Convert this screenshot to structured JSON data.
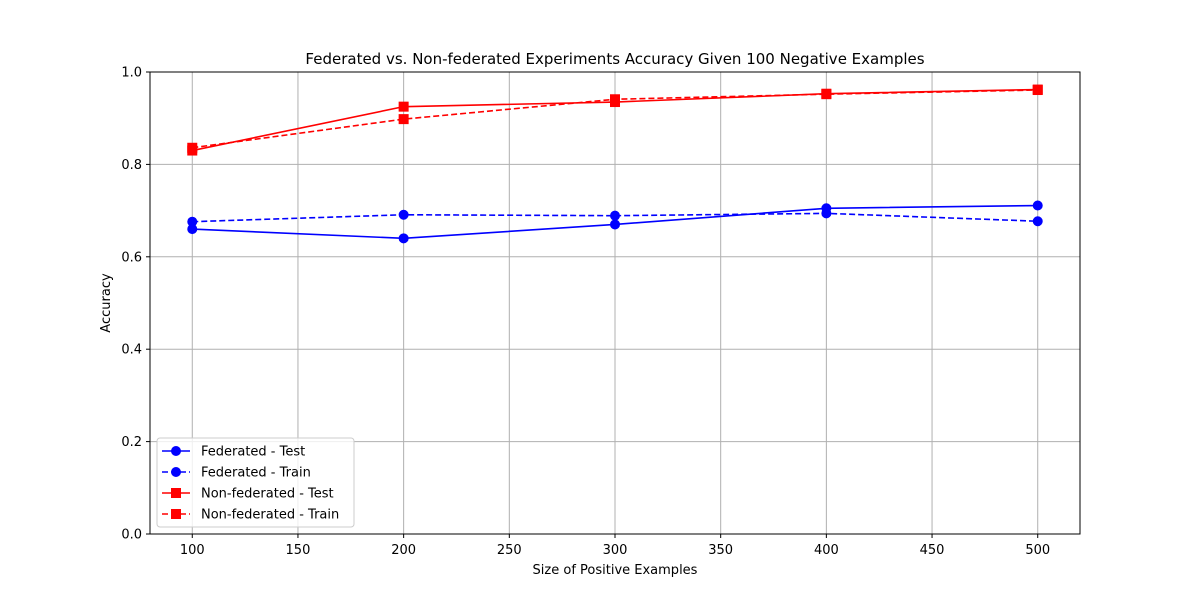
{
  "chart_data": {
    "type": "line",
    "title": "Federated vs. Non-federated Experiments Accuracy Given 100 Negative Examples",
    "xlabel": "Size of Positive Examples",
    "ylabel": "Accuracy",
    "xlim": [
      80,
      520
    ],
    "ylim": [
      0.0,
      1.0
    ],
    "xticks": [
      100,
      150,
      200,
      250,
      300,
      350,
      400,
      450,
      500
    ],
    "xtick_labels": [
      "100",
      "150",
      "200",
      "250",
      "300",
      "350",
      "400",
      "450",
      "500"
    ],
    "yticks": [
      0.0,
      0.2,
      0.4,
      0.6,
      0.8,
      1.0
    ],
    "ytick_labels": [
      "0.0",
      "0.2",
      "0.4",
      "0.6",
      "0.8",
      "1.0"
    ],
    "grid": true,
    "legend_position": "bottom-left",
    "x": [
      100,
      200,
      300,
      400,
      500
    ],
    "series": [
      {
        "name": "Federated - Test",
        "values": [
          0.66,
          0.64,
          0.67,
          0.705,
          0.711
        ],
        "color": "#0000ff",
        "line_style": "solid",
        "marker": "circle"
      },
      {
        "name": "Federated - Train",
        "values": [
          0.676,
          0.691,
          0.689,
          0.694,
          0.677
        ],
        "color": "#0000ff",
        "line_style": "dashed",
        "marker": "circle"
      },
      {
        "name": "Non-federated - Test",
        "values": [
          0.83,
          0.925,
          0.935,
          0.953,
          0.962
        ],
        "color": "#ff0000",
        "line_style": "solid",
        "marker": "square"
      },
      {
        "name": "Non-federated - Train",
        "values": [
          0.836,
          0.898,
          0.941,
          0.952,
          0.961
        ],
        "color": "#ff0000",
        "line_style": "dashed",
        "marker": "square"
      }
    ]
  }
}
